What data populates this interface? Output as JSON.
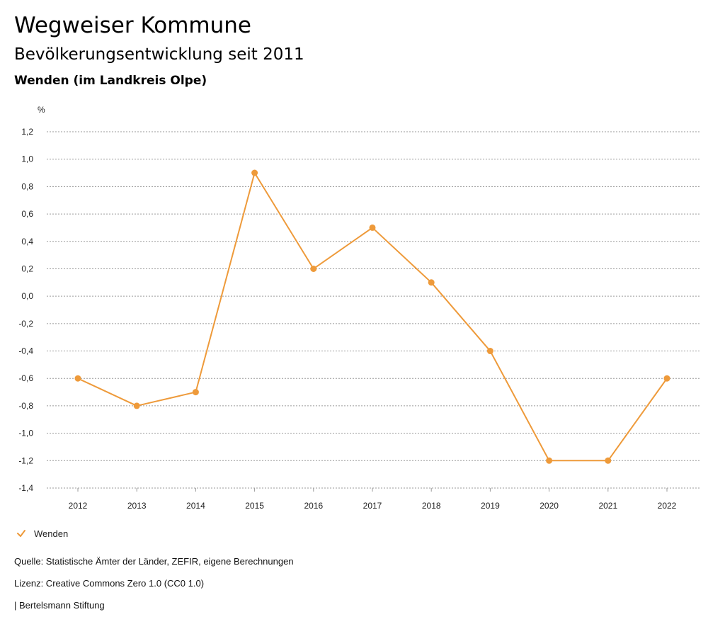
{
  "header": {
    "title": "Wegweiser Kommune",
    "subtitle": "Bevölkerungsentwicklung seit 2011",
    "region": "Wenden (im Landkreis Olpe)"
  },
  "chart_data": {
    "type": "line",
    "ylabel": "%",
    "ylim": [
      -1.4,
      1.2
    ],
    "yticks": [
      "1,2",
      "1,0",
      "0,8",
      "0,6",
      "0,4",
      "0,2",
      "0,0",
      "-0,2",
      "-0,4",
      "-0,6",
      "-0,8",
      "-1,0",
      "-1,2",
      "-1,4"
    ],
    "ytick_values": [
      1.2,
      1.0,
      0.8,
      0.6,
      0.4,
      0.2,
      0.0,
      -0.2,
      -0.4,
      -0.6,
      -0.8,
      -1.0,
      -1.2,
      -1.4
    ],
    "categories": [
      "2012",
      "2013",
      "2014",
      "2015",
      "2016",
      "2017",
      "2018",
      "2019",
      "2020",
      "2021",
      "2022"
    ],
    "series": [
      {
        "name": "Wenden",
        "color": "#ee9a3a",
        "values": [
          -0.6,
          -0.8,
          -0.7,
          0.9,
          0.2,
          0.5,
          0.1,
          -0.4,
          -1.2,
          -1.2,
          -0.6
        ]
      }
    ],
    "grid": true,
    "legend": "bottom-left"
  },
  "legend": {
    "label": "Wenden"
  },
  "footer": {
    "source": "Quelle: Statistische Ämter der Länder, ZEFIR, eigene Berechnungen",
    "license": "Lizenz: Creative Commons Zero 1.0 (CC0 1.0)",
    "publisher": "| Bertelsmann Stiftung"
  }
}
